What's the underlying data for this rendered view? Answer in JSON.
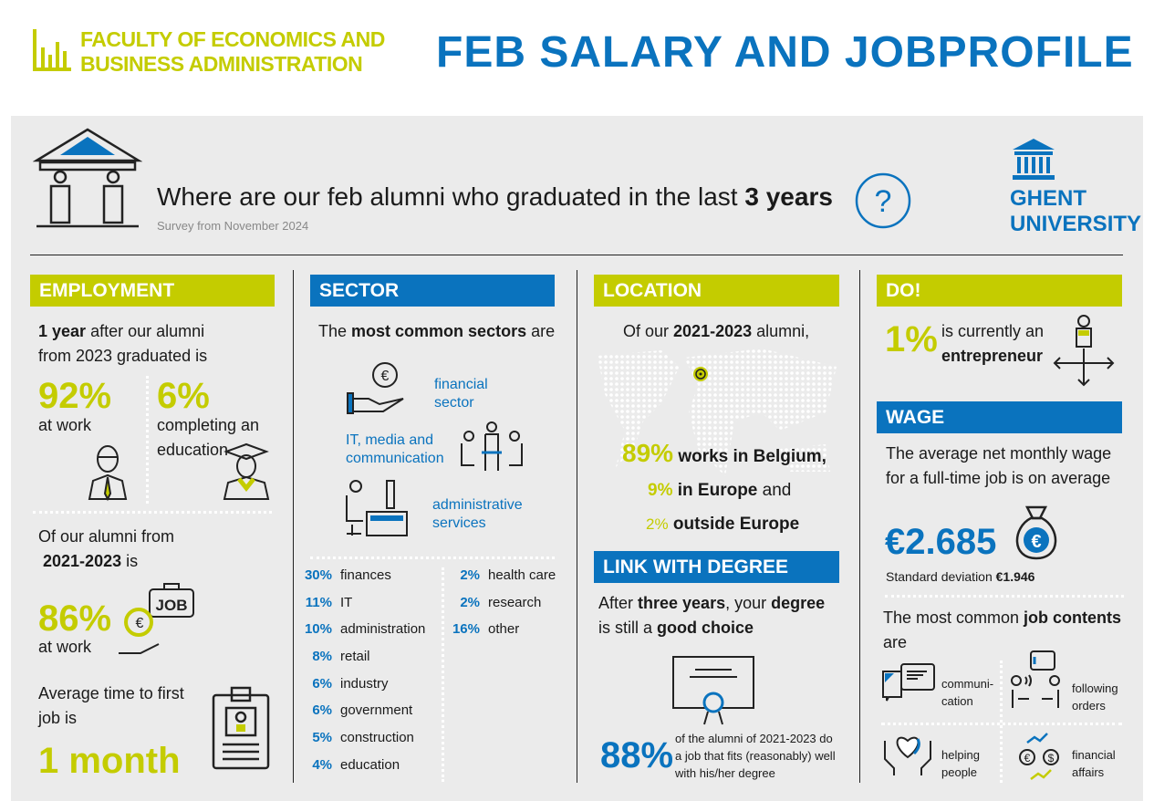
{
  "header": {
    "faculty_line1": "FACULTY OF ECONOMICS AND",
    "faculty_line2": "BUSINESS ADMINISTRATION",
    "title": "FEB SALARY AND JOBPROFILE"
  },
  "intro": {
    "question_pre": "Where are our feb alumni who graduated in the last ",
    "question_bold": "3 years",
    "survey": "Survey from November 2024",
    "university_line1": "GHENT",
    "university_line2": "UNIVERSITY"
  },
  "employment": {
    "heading": "EMPLOYMENT",
    "intro_bold": "1 year",
    "intro_rest": " after our alumni",
    "intro_line2": "from 2023 graduated is",
    "at_work_pct": "92%",
    "at_work_label": "at work",
    "education_pct": "6%",
    "education_label1": "completing an",
    "education_label2": "education",
    "alumni_line1": "Of our alumni from",
    "alumni_years": "2021-2023",
    "alumni_is": " is",
    "alumni_pct": "86%",
    "alumni_label": "at work",
    "job_sign": "JOB",
    "time_line1": "Average time to first",
    "time_line2": "job is",
    "time_value": "1 month"
  },
  "sector": {
    "heading": "SECTOR",
    "intro_pre": "The ",
    "intro_bold": "most common sectors",
    "intro_post": " are",
    "icon1_label1": "financial",
    "icon1_label2": "sector",
    "icon2_label1": "IT, media and",
    "icon2_label2": "communication",
    "icon3_label1": "administrative",
    "icon3_label2": "services",
    "list_left": [
      {
        "pct": "30%",
        "label": "finances"
      },
      {
        "pct": "11%",
        "label": "IT"
      },
      {
        "pct": "10%",
        "label": "administration"
      },
      {
        "pct": "8%",
        "label": "retail"
      },
      {
        "pct": "6%",
        "label": "industry"
      },
      {
        "pct": "6%",
        "label": "government"
      },
      {
        "pct": "5%",
        "label": "construction"
      },
      {
        "pct": "4%",
        "label": "education"
      }
    ],
    "list_right": [
      {
        "pct": "2%",
        "label": "health care"
      },
      {
        "pct": "2%",
        "label": "research"
      },
      {
        "pct": "16%",
        "label": "other"
      }
    ]
  },
  "location": {
    "heading": "LOCATION",
    "intro_pre": "Of our ",
    "intro_bold": "2021-2023",
    "intro_post": " alumni,",
    "belgium_pct": "89%",
    "belgium_label": " works in Belgium,",
    "europe_pct": "9%",
    "europe_label": " in Europe",
    "europe_and": " and",
    "outside_pct": "2%",
    "outside_label": " outside Europe"
  },
  "link": {
    "heading": "LINK WITH DEGREE",
    "line1_pre": "After ",
    "line1_bold": "three years",
    "line1_mid": ", your ",
    "line1_bold2": "degree",
    "line2_pre": "is still a ",
    "line2_bold": "good choice",
    "pct": "88%",
    "desc1": "of the alumni of 2021-2023 do",
    "desc2": "a job that fits (reasonably) well",
    "desc3": "with his/her degree"
  },
  "do": {
    "heading": "DO!",
    "pct": "1%",
    "label1": "is currently an",
    "label2": "entrepreneur"
  },
  "wage": {
    "heading": "WAGE",
    "line1": "The average net monthly wage",
    "line2": "for a full-time job is on average",
    "value": "€2.685",
    "sd_label": "Standard deviation ",
    "sd_value": "€1.946",
    "contents_pre": "The most common ",
    "contents_bold": "job contents",
    "contents_post": "are",
    "jobs": [
      {
        "l1": "communi-",
        "l2": "cation"
      },
      {
        "l1": "following",
        "l2": "orders"
      },
      {
        "l1": "helping",
        "l2": "people"
      },
      {
        "l1": "financial",
        "l2": "affairs"
      }
    ]
  },
  "colors": {
    "lime": "#c4cc00",
    "blue": "#0a73be",
    "panel": "#ebebeb"
  }
}
